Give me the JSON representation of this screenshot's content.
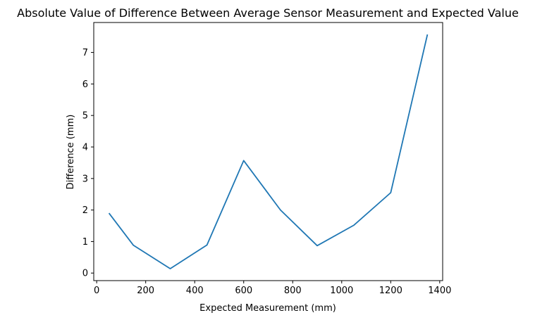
{
  "chart_data": {
    "type": "line",
    "title": "Absolute Value of Difference Between Average Sensor Measurement and Expected Value",
    "xlabel": "Expected Measurement (mm)",
    "ylabel": "Difference (mm)",
    "xlim": [
      -12,
      1412
    ],
    "ylim": [
      -0.24,
      7.95
    ],
    "xticks": [
      0,
      200,
      400,
      600,
      800,
      1000,
      1200,
      1400
    ],
    "xtick_labels": [
      "0",
      "200",
      "400",
      "600",
      "800",
      "1000",
      "1200",
      "1400"
    ],
    "yticks": [
      0,
      1,
      2,
      3,
      4,
      5,
      6,
      7
    ],
    "ytick_labels": [
      "0",
      "1",
      "2",
      "3",
      "4",
      "5",
      "6",
      "7"
    ],
    "grid": false,
    "series": [
      {
        "color": "#1f77b4",
        "x": [
          50,
          150,
          300,
          450,
          600,
          750,
          900,
          1050,
          1200,
          1350
        ],
        "y": [
          1.9,
          0.88,
          0.14,
          0.89,
          3.57,
          2.0,
          0.87,
          1.52,
          2.55,
          7.57
        ]
      }
    ]
  }
}
